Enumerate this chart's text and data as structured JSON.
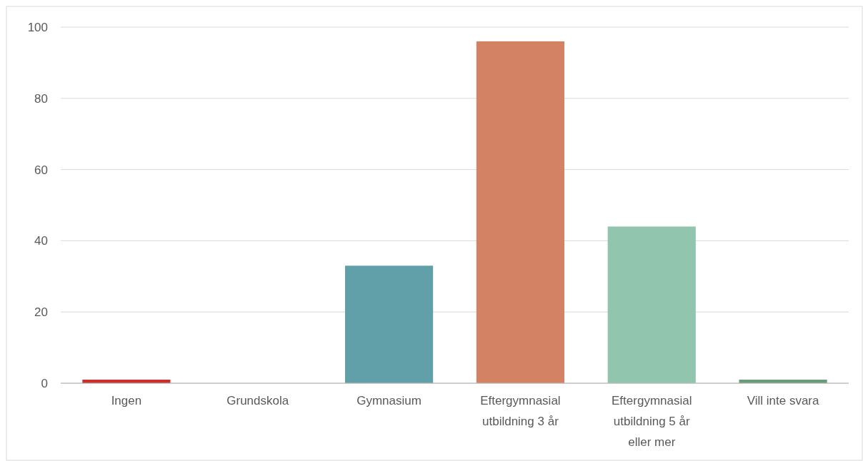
{
  "chart_data": {
    "type": "bar",
    "categories": [
      "Ingen",
      "Grundskola",
      "Gymnasium",
      "Eftergymnasial utbildning 3 år",
      "Eftergymnasial utbildning 5 år eller mer",
      "Vill inte svara"
    ],
    "values": [
      1,
      0,
      33,
      96,
      44,
      1
    ],
    "colors": [
      "#c9302c",
      "#619fa9",
      "#619fa9",
      "#d38263",
      "#91c5ad",
      "#6b9a78"
    ],
    "ylim": [
      0,
      100
    ],
    "yticks": [
      0,
      20,
      40,
      60,
      80,
      100
    ],
    "grid": "y"
  }
}
